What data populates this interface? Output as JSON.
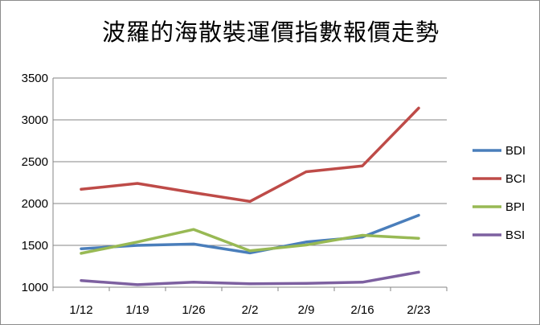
{
  "chart_data": {
    "type": "line",
    "title": "波羅的海散裝運價指數報價走勢",
    "categories": [
      "1/12",
      "1/19",
      "1/26",
      "2/2",
      "2/9",
      "2/16",
      "2/23"
    ],
    "ylim": [
      1000,
      3500
    ],
    "yticks": [
      1000,
      1500,
      2000,
      2500,
      3000,
      3500
    ],
    "grid": true,
    "legend_position": "right",
    "series": [
      {
        "name": "BDI",
        "color": "#4a7ebb",
        "values": [
          1460,
          1500,
          1515,
          1410,
          1540,
          1600,
          1860
        ]
      },
      {
        "name": "BCI",
        "color": "#be4b48",
        "values": [
          2170,
          2240,
          2130,
          2025,
          2380,
          2450,
          3140
        ]
      },
      {
        "name": "BPI",
        "color": "#98b954",
        "values": [
          1405,
          1540,
          1690,
          1435,
          1505,
          1620,
          1585
        ]
      },
      {
        "name": "BSI",
        "color": "#7d60a0",
        "values": [
          1080,
          1030,
          1060,
          1040,
          1045,
          1060,
          1180
        ]
      }
    ]
  }
}
